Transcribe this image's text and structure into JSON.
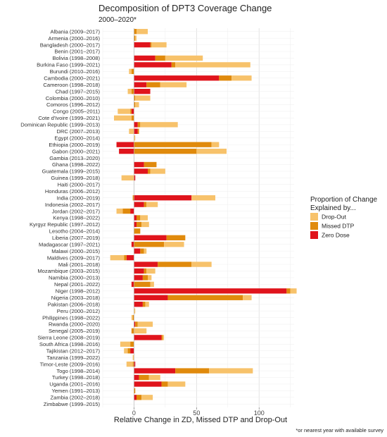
{
  "chart_data": {
    "type": "bar",
    "orientation": "horizontal",
    "stacked": true,
    "title": "Decomposition of DPT3 Coverage Change",
    "subtitle": "2000–2020*",
    "xlabel": "Relative Change in ZD, Missed DTP and Drop-Out",
    "ylabel": "",
    "xlim": [
      -25,
      128
    ],
    "xticks": [
      0,
      50,
      100
    ],
    "xtick_labels": [
      "0",
      "50",
      "100"
    ],
    "grid": true,
    "footnote": "*or nearest year with available survey",
    "legend": {
      "title_lines": [
        "Proportion of Change",
        "Explained by..."
      ],
      "placement": "right",
      "entries": [
        {
          "name": "Drop-Out",
          "color": "#F7C26B"
        },
        {
          "name": "Missed DTP",
          "color": "#E08A0C"
        },
        {
          "name": "Zero Dose",
          "color": "#E0141C"
        }
      ]
    },
    "categories": [
      "Albania (2009–2017)",
      "Armenia (2000–2016)",
      "Bangladesh (2000–2017)",
      "Benin (2001–2017)",
      "Bolivia (1998–2008)",
      "Burkina Faso (1999–2021)",
      "Burundi (2010–2016)",
      "Cambodia (2000–2021)",
      "Cameroon (1998–2018)",
      "Chad (1997–2015)",
      "Colombia (2000–2010)",
      "Comoros (1996–2012)",
      "Congo (2005–2011)",
      "Cote d'Ivoire (1999–2021)",
      "Dominican Republic (1999–2013)",
      "DRC (2007–2013)",
      "Egypt (2000–2014)",
      "Ethiopia (2000–2019)",
      "Gabon (2000–2021)",
      "Gambia (2013–2020)",
      "Ghana (1998–2022)",
      "Guatemala (1999–2015)",
      "Guinea (1999–2018)",
      "Haiti (2000–2017)",
      "Honduras (2006–2012)",
      "India (2000–2019)",
      "Indonesia (2002–2017)",
      "Jordan (2002–2017)",
      "Kenya (1998–2022)",
      "Kyrgyz Republic (1997–2012)",
      "Lesotho (2004–2014)",
      "Liberia (2007–2019)",
      "Madagascar (1997–2021)",
      "Malawi (2000–2015)",
      "Maldives (2009–2017)",
      "Mali (2001–2018)",
      "Mozambique (2003–2015)",
      "Namibia (2000–2013)",
      "Nepal (2001–2022)",
      "Niger (1998–2012)",
      "Nigeria (2003–2018)",
      "Pakistan (2006–2018)",
      "Peru (2000–2012)",
      "Philippines (1998–2022)",
      "Rwanda (2000–2020)",
      "Senegal (2005–2019)",
      "Sierra Leone (2008–2019)",
      "South Africa (1998–2016)",
      "Tajikistan (2012–2017)",
      "Tanzania (1999–2022)",
      "Timor-Leste (2009–2016)",
      "Togo (1998–2014)",
      "Turkey (1998–2018)",
      "Uganda (2001–2016)",
      "Yemen (1991–2013)",
      "Zambia (2002–2018)",
      "Zimbabwe (1999–2015)"
    ],
    "series": [
      {
        "name": "Zero Dose",
        "color": "#E0141C",
        "values": [
          0,
          0,
          13,
          0,
          17,
          30,
          0,
          68,
          10,
          13,
          0,
          0,
          -2,
          0,
          3,
          3,
          0,
          -14,
          -12,
          0,
          8,
          11,
          1,
          0,
          0,
          46,
          8,
          -3,
          2,
          2,
          0,
          26,
          -2,
          5,
          -6,
          19,
          8,
          7,
          -2,
          122,
          27,
          7,
          0,
          0,
          1,
          0,
          22,
          0,
          -3,
          0,
          1,
          33,
          4,
          22,
          0,
          2,
          0
        ]
      },
      {
        "name": "Missed DTP",
        "color": "#E08A0C",
        "values": [
          2,
          1,
          1,
          0,
          8,
          3,
          -2,
          10,
          11,
          -2,
          1,
          1,
          -1,
          -2,
          2,
          1,
          0,
          62,
          50,
          0,
          10,
          2,
          0,
          0,
          0,
          -1,
          2,
          -6,
          3,
          4,
          5,
          15,
          24,
          3,
          -2,
          27,
          2,
          4,
          13,
          3,
          60,
          2,
          0,
          -1,
          2,
          -2,
          1,
          -3,
          -2,
          0,
          -1,
          27,
          8,
          5,
          1,
          4,
          0
        ]
      },
      {
        "name": "Drop-Out",
        "color": "#F7C26B",
        "values": [
          9,
          1,
          12,
          0,
          30,
          60,
          -2,
          16,
          21,
          -3,
          12,
          3,
          -10,
          -14,
          30,
          -4,
          1,
          6,
          24,
          0,
          0,
          12,
          -10,
          0,
          0,
          19,
          9,
          -5,
          6,
          6,
          0,
          0,
          16,
          2,
          -11,
          16,
          7,
          3,
          3,
          5,
          7,
          3,
          1,
          -1,
          12,
          10,
          1,
          -8,
          -3,
          -1,
          -5,
          35,
          9,
          14,
          0,
          9,
          0
        ]
      }
    ]
  }
}
